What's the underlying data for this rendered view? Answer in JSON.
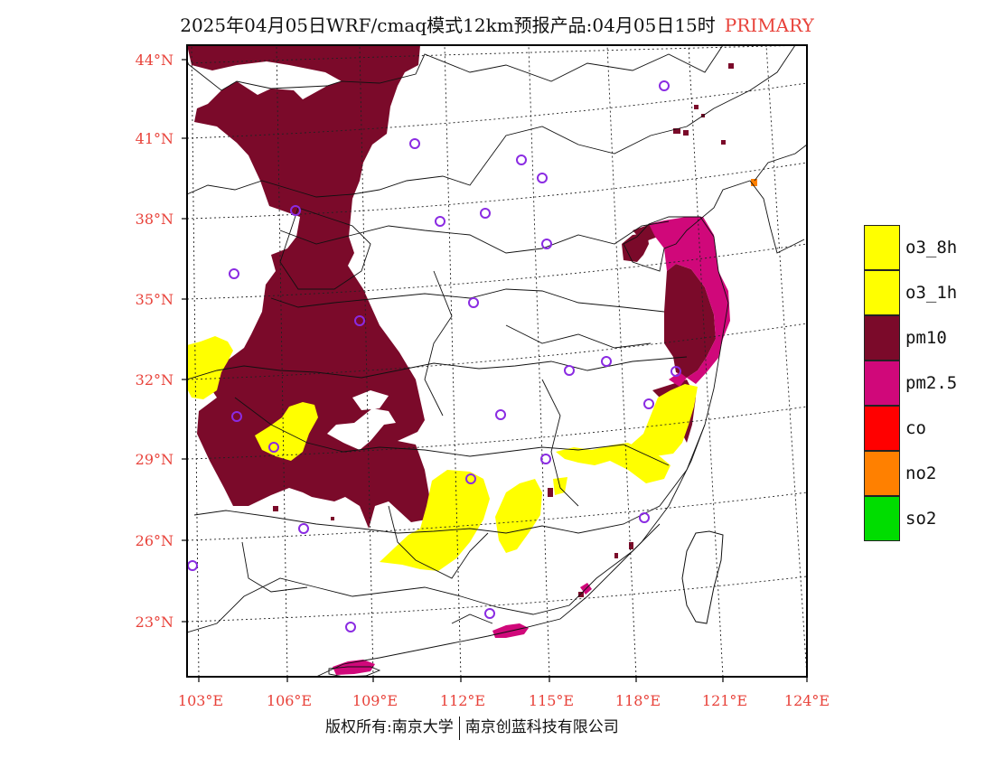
{
  "title": "2025年04月05日WRF/cmaq模式12km预报产品:04月05日15时",
  "title_tag": "PRIMARY",
  "lat_labels": [
    "44°N",
    "41°N",
    "38°N",
    "35°N",
    "32°N",
    "29°N",
    "26°N",
    "23°N"
  ],
  "lon_labels": [
    "103°E",
    "106°E",
    "109°E",
    "112°E",
    "115°E",
    "118°E",
    "121°E",
    "124°E"
  ],
  "legend": [
    {
      "label": "o3_8h",
      "color": "#ffff00"
    },
    {
      "label": "o3_1h",
      "color": "#ffff00"
    },
    {
      "label": "pm10",
      "color": "#7b0a2a"
    },
    {
      "label": "pm2.5",
      "color": "#d0087a"
    },
    {
      "label": "co",
      "color": "#ff0000"
    },
    {
      "label": "no2",
      "color": "#ff8000"
    },
    {
      "label": "so2",
      "color": "#00dd00"
    }
  ],
  "footer_left": "版权所有:南京大学",
  "footer_right": "南京创蓝科技有限公司",
  "colors": {
    "label_red": "#e8423a",
    "station_marker": "#8a2be2"
  }
}
